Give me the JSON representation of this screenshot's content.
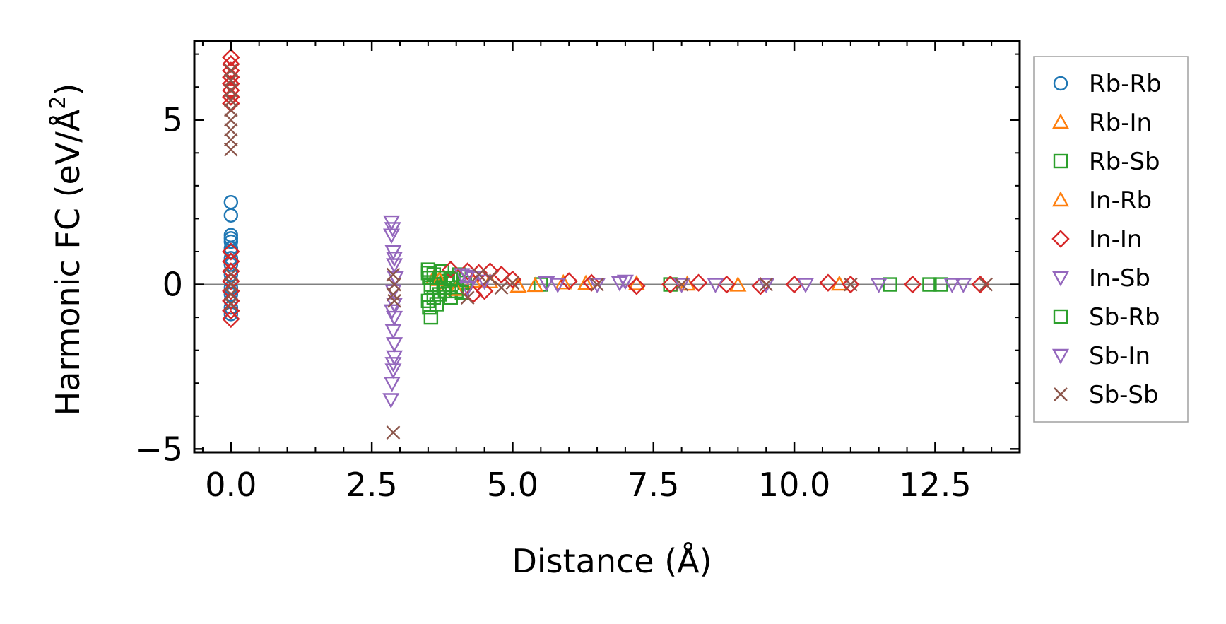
{
  "chart_data": {
    "type": "scatter",
    "title": "",
    "xlabel": "Distance (Å)",
    "ylabel_main": "Harmonic FC (eV/Å",
    "ylabel_sup": "2",
    "ylabel_close": ")",
    "xlim": [
      -0.65,
      14.0
    ],
    "ylim": [
      -5.1,
      7.4
    ],
    "xticks": [
      0.0,
      2.5,
      5.0,
      7.5,
      10.0,
      12.5
    ],
    "xtick_labels": [
      "0.0",
      "2.5",
      "5.0",
      "7.5",
      "10.0",
      "12.5"
    ],
    "yticks": [
      -5,
      0,
      5
    ],
    "ytick_labels": [
      "−5",
      "0",
      "5"
    ],
    "legend_position": "outside-right",
    "reference_line_y": 0,
    "series": [
      {
        "name": "Rb-Rb",
        "marker": "circle",
        "color": "#1f77b4",
        "points": [
          [
            0,
            2.5
          ],
          [
            0,
            2.1
          ],
          [
            0,
            1.5
          ],
          [
            0,
            1.4
          ],
          [
            0,
            1.3
          ],
          [
            0,
            1.1
          ],
          [
            0,
            1.0
          ],
          [
            0,
            0.8
          ],
          [
            0,
            0.6
          ],
          [
            0,
            0.3
          ],
          [
            0,
            0.1
          ],
          [
            0,
            -0.1
          ],
          [
            0,
            -0.3
          ],
          [
            0,
            -0.5
          ],
          [
            0,
            -0.7
          ],
          [
            0,
            -0.9
          ]
        ]
      },
      {
        "name": "Rb-In",
        "marker": "triangle-up",
        "color": "#ff7f0e",
        "points": [
          [
            3.6,
            0.2
          ],
          [
            3.8,
            -0.1
          ],
          [
            4.3,
            0.1
          ],
          [
            5.1,
            -0.05
          ],
          [
            5.9,
            0.05
          ],
          [
            7.2,
            0.02
          ],
          [
            9.0,
            -0.02
          ],
          [
            10.8,
            0.01
          ]
        ]
      },
      {
        "name": "Rb-Sb",
        "marker": "square",
        "color": "#2ca02c",
        "points": [
          [
            3.5,
            0.45
          ],
          [
            3.52,
            0.2
          ],
          [
            3.55,
            -0.1
          ],
          [
            3.5,
            -0.5
          ],
          [
            3.52,
            -0.7
          ],
          [
            3.55,
            -1.0
          ],
          [
            3.6,
            0.3
          ],
          [
            3.65,
            0.0
          ],
          [
            3.7,
            -0.3
          ],
          [
            3.75,
            0.4
          ],
          [
            3.8,
            -0.2
          ],
          [
            3.85,
            0.1
          ],
          [
            3.9,
            -0.4
          ],
          [
            3.95,
            0.2
          ],
          [
            4.0,
            -0.1
          ],
          [
            4.05,
            0.3
          ],
          [
            4.1,
            -0.25
          ],
          [
            4.15,
            0.05
          ],
          [
            5.5,
            0.0
          ],
          [
            7.8,
            0.0
          ],
          [
            11.7,
            0.0
          ],
          [
            12.4,
            0.0
          ],
          [
            12.6,
            0.0
          ]
        ]
      },
      {
        "name": "In-Rb",
        "marker": "triangle-up",
        "color": "#ff7f0e",
        "points": [
          [
            3.7,
            0.15
          ],
          [
            4.0,
            -0.15
          ],
          [
            4.6,
            0.08
          ],
          [
            5.4,
            -0.03
          ],
          [
            6.3,
            0.03
          ],
          [
            8.1,
            0.01
          ]
        ]
      },
      {
        "name": "In-In",
        "marker": "diamond",
        "color": "#d62728",
        "points": [
          [
            0,
            6.9
          ],
          [
            0,
            6.7
          ],
          [
            0,
            6.5
          ],
          [
            0,
            6.3
          ],
          [
            0,
            6.1
          ],
          [
            0,
            5.9
          ],
          [
            0,
            5.7
          ],
          [
            0,
            5.5
          ],
          [
            0,
            1.0
          ],
          [
            0,
            0.7
          ],
          [
            0,
            0.4
          ],
          [
            0,
            0.1
          ],
          [
            0,
            -0.2
          ],
          [
            0,
            -0.5
          ],
          [
            0,
            -0.8
          ],
          [
            0,
            -1.05
          ],
          [
            3.9,
            0.45
          ],
          [
            4.2,
            0.4
          ],
          [
            4.4,
            0.35
          ],
          [
            4.6,
            0.4
          ],
          [
            4.8,
            0.3
          ],
          [
            4.3,
            -0.3
          ],
          [
            4.5,
            -0.2
          ],
          [
            5.0,
            0.15
          ],
          [
            6.0,
            0.1
          ],
          [
            6.4,
            0.05
          ],
          [
            7.2,
            -0.05
          ],
          [
            7.8,
            0.0
          ],
          [
            8.3,
            0.05
          ],
          [
            8.8,
            0.0
          ],
          [
            9.4,
            -0.05
          ],
          [
            10.0,
            0.0
          ],
          [
            10.6,
            0.05
          ],
          [
            11.0,
            0.0
          ],
          [
            12.1,
            0.0
          ],
          [
            13.3,
            0.0
          ]
        ]
      },
      {
        "name": "In-Sb",
        "marker": "triangle-down",
        "color": "#9467bd",
        "points": [
          [
            2.85,
            1.9
          ],
          [
            2.85,
            1.5
          ],
          [
            2.88,
            1.0
          ],
          [
            2.9,
            0.6
          ],
          [
            2.92,
            0.2
          ],
          [
            2.88,
            -0.2
          ],
          [
            2.9,
            -0.6
          ],
          [
            2.9,
            -1.0
          ],
          [
            2.88,
            -1.4
          ],
          [
            2.9,
            -1.8
          ],
          [
            2.9,
            -2.2
          ],
          [
            2.88,
            -2.6
          ],
          [
            2.86,
            -3.0
          ],
          [
            2.84,
            -3.5
          ],
          [
            4.1,
            0.3
          ],
          [
            4.2,
            -0.1
          ],
          [
            4.3,
            0.2
          ],
          [
            5.6,
            0.05
          ],
          [
            6.5,
            0.0
          ],
          [
            7.0,
            0.1
          ],
          [
            8.0,
            0.0
          ],
          [
            9.5,
            0.0
          ],
          [
            11.5,
            0.0
          ],
          [
            13.0,
            0.0
          ]
        ]
      },
      {
        "name": "Sb-Rb",
        "marker": "square",
        "color": "#2ca02c",
        "points": [
          [
            3.5,
            0.35
          ],
          [
            3.55,
            0.0
          ],
          [
            3.6,
            -0.4
          ],
          [
            3.65,
            -0.6
          ],
          [
            3.7,
            0.2
          ],
          [
            3.8,
            -0.1
          ],
          [
            3.9,
            0.15
          ],
          [
            4.0,
            -0.2
          ]
        ]
      },
      {
        "name": "Sb-In",
        "marker": "triangle-down",
        "color": "#9467bd",
        "points": [
          [
            2.87,
            1.7
          ],
          [
            2.9,
            0.8
          ],
          [
            2.86,
            -0.8
          ],
          [
            2.88,
            -2.4
          ],
          [
            4.2,
            0.25
          ],
          [
            4.5,
            0.1
          ],
          [
            5.8,
            0.0
          ],
          [
            6.9,
            0.05
          ],
          [
            8.6,
            0.0
          ],
          [
            10.2,
            0.0
          ],
          [
            12.8,
            0.0
          ]
        ]
      },
      {
        "name": "Sb-Sb",
        "marker": "x",
        "color": "#8c564b",
        "points": [
          [
            0,
            6.5
          ],
          [
            0,
            6.2
          ],
          [
            0,
            5.9
          ],
          [
            0,
            5.6
          ],
          [
            0,
            5.3
          ],
          [
            0,
            5.0
          ],
          [
            0,
            4.7
          ],
          [
            0,
            4.4
          ],
          [
            0,
            4.1
          ],
          [
            0,
            0.3
          ],
          [
            0,
            0.0
          ],
          [
            0,
            -0.3
          ],
          [
            0,
            -0.6
          ],
          [
            2.88,
            0.3
          ],
          [
            2.9,
            0.0
          ],
          [
            2.88,
            -0.3
          ],
          [
            2.9,
            -0.5
          ],
          [
            2.88,
            -4.5
          ],
          [
            4.4,
            0.3
          ],
          [
            4.2,
            -0.4
          ],
          [
            4.6,
            0.2
          ],
          [
            4.8,
            -0.1
          ],
          [
            5.0,
            0.05
          ],
          [
            6.5,
            0.0
          ],
          [
            8.0,
            0.0
          ],
          [
            9.5,
            0.0
          ],
          [
            11.0,
            0.0
          ],
          [
            13.4,
            0.0
          ]
        ]
      }
    ]
  }
}
